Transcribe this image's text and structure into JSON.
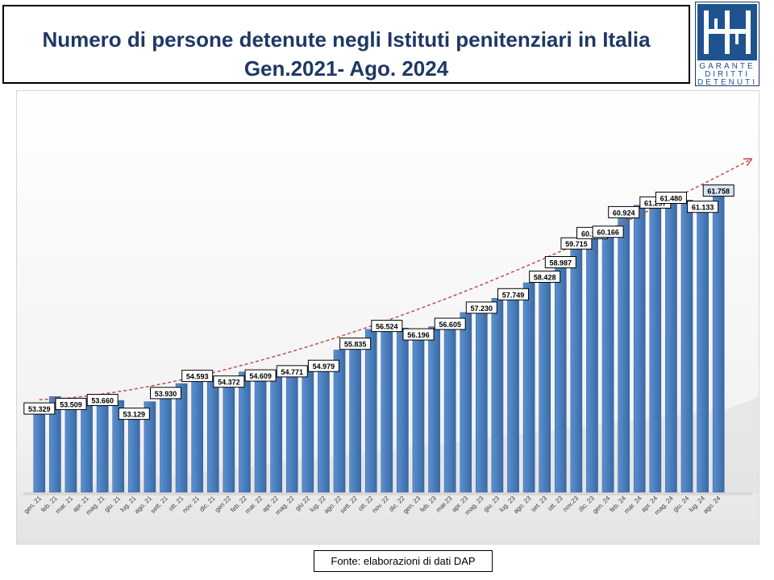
{
  "header": {
    "title_line1": "Numero di persone detenute negli Istituti penitenziari in Italia",
    "title_line2": "Gen.2021- Ago. 2024"
  },
  "logo": {
    "line1": "GARANTE",
    "line2": "DIRITTI",
    "line3": "DETENUTI",
    "color": "#1f5390"
  },
  "footer": {
    "source": "Fonte: elaborazioni di dati DAP"
  },
  "colors": {
    "bar": "#4a7ebb",
    "bar_dark": "#2e5d99",
    "trend": "#c0504d",
    "title": "#1f3864"
  },
  "chart_data": {
    "type": "bar",
    "categories": [
      "gen. 21",
      "feb. 21",
      "mar. 21",
      "apr. 21",
      "mag. 21",
      "giu. 21",
      "lug. 21",
      "ago. 21",
      "sett. 21",
      "ott. 21",
      "nov. 21",
      "dic. 21",
      "gen 22",
      "feb. 22",
      "mar. 22",
      "apr. 22",
      "mag. 22",
      "giu 22",
      "lug. 22",
      "ago. 22",
      "sett. 22",
      "ott. 22",
      "nov. 22",
      "dic. 22",
      "gen. 23",
      "feb. 23",
      "mar.23",
      "apr. 23",
      "mag. 23",
      "giu. 23",
      "lug. 23",
      "ago. 23",
      "set. 23",
      "ott. 23",
      "nov.23",
      "dic. 23",
      "gen. 24",
      "feb. 24",
      "mar. 24",
      "apr. 24",
      "mag. 24",
      "giu. 24",
      "lug. 24",
      "ago. 24"
    ],
    "values": [
      53329,
      53700,
      53509,
      53600,
      53660,
      53550,
      53129,
      53500,
      53930,
      54200,
      54593,
      54450,
      54372,
      54650,
      54609,
      54700,
      54771,
      54900,
      54979,
      55500,
      55835,
      56300,
      56524,
      56350,
      56196,
      56400,
      56605,
      56950,
      57230,
      57500,
      57749,
      58100,
      58428,
      58987,
      59715,
      60116,
      60166,
      60924,
      61100,
      61297,
      61480,
      61300,
      61133,
      61758
    ],
    "labels": [
      "53.329",
      "",
      "53.509",
      "",
      "53.660",
      "",
      "53.129",
      "",
      "53.930",
      "",
      "54.593",
      "",
      "54.372",
      "",
      "54.609",
      "",
      "54.771",
      "",
      "54.979",
      "",
      "55.835",
      "",
      "56.524",
      "",
      "56.196",
      "",
      "56.605",
      "",
      "57.230",
      "",
      "57.749",
      "",
      "58.428",
      "58.987",
      "59.715",
      "60.116",
      "60.166",
      "60.924",
      "",
      "61.297",
      "61.480",
      "",
      "61.133",
      "61.758"
    ],
    "ylim": [
      50000,
      62400
    ],
    "trendline": true,
    "xlabel": "",
    "ylabel": ""
  }
}
